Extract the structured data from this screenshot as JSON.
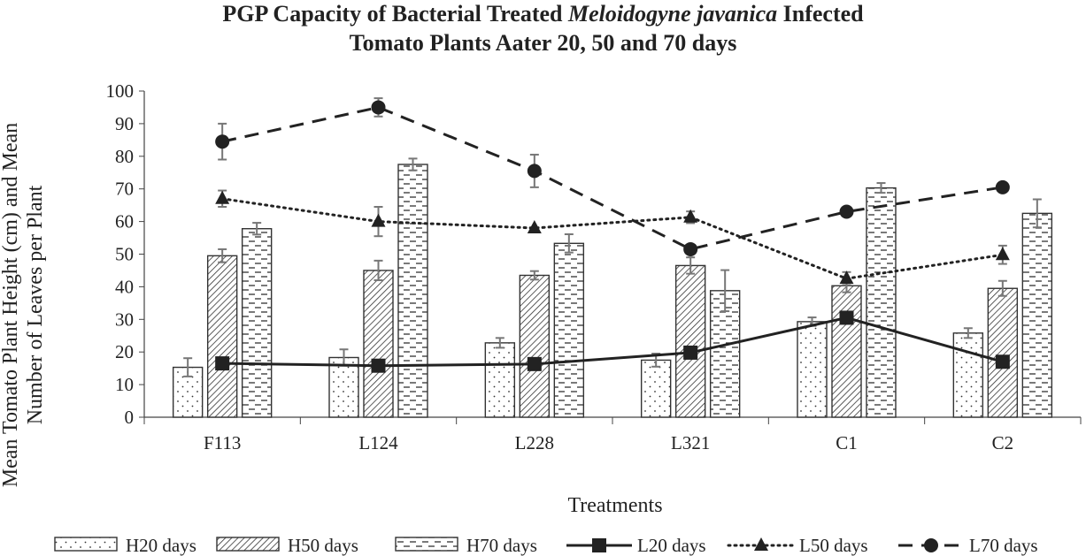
{
  "chart_data": {
    "type": "bar",
    "title_line1_pre": "PGP Capacity of Bacterial Treated ",
    "title_line1_italic": "Meloidogyne javanica",
    "title_line1_post": " Infected",
    "title_line2": "Tomato Plants Aater 20, 50 and 70 days",
    "ylabel_line1": "Mean Tomato Plant Height (cm) and Mean",
    "ylabel_line2": "Number of Leaves per Plant",
    "xlabel": "Treatments",
    "categories": [
      "F113",
      "L124",
      "L228",
      "L321",
      "C1",
      "C2"
    ],
    "ylim": [
      0,
      100
    ],
    "yticks": [
      0,
      10,
      20,
      30,
      40,
      50,
      60,
      70,
      80,
      90,
      100
    ],
    "bar_series": [
      {
        "name": "H20 days",
        "pattern": "dots",
        "values": [
          15.3,
          18.3,
          22.8,
          17.5,
          29.3,
          25.8
        ],
        "errors": [
          2.8,
          2.5,
          1.5,
          2.0,
          1.3,
          1.5
        ]
      },
      {
        "name": "H50 days",
        "pattern": "diagonal",
        "values": [
          49.5,
          45.0,
          43.5,
          46.5,
          40.3,
          39.5
        ],
        "errors": [
          2.0,
          3.0,
          1.3,
          2.5,
          2.0,
          2.3
        ]
      },
      {
        "name": "H70 days",
        "pattern": "dashes",
        "values": [
          57.8,
          77.5,
          53.3,
          38.8,
          70.3,
          62.5
        ],
        "errors": [
          1.8,
          1.8,
          2.8,
          6.3,
          1.5,
          4.3
        ]
      }
    ],
    "line_series": [
      {
        "name": "L20 days",
        "style": "solid",
        "marker": "square",
        "values": [
          16.5,
          15.8,
          16.3,
          19.8,
          30.5,
          17.0
        ],
        "errors": [
          0,
          0,
          0,
          0,
          0,
          0
        ]
      },
      {
        "name": "L50 days",
        "style": "dotted",
        "marker": "triangle",
        "values": [
          67.0,
          60.0,
          58.0,
          61.3,
          42.5,
          49.8
        ],
        "errors": [
          2.5,
          4.5,
          0,
          1.8,
          2.0,
          2.8
        ]
      },
      {
        "name": "L70 days",
        "style": "dashed",
        "marker": "circle",
        "values": [
          84.5,
          95.0,
          75.5,
          51.5,
          63.0,
          70.5
        ],
        "errors": [
          5.5,
          2.8,
          5.0,
          0,
          0,
          0
        ]
      }
    ],
    "legend_position": "bottom",
    "grid": false
  }
}
